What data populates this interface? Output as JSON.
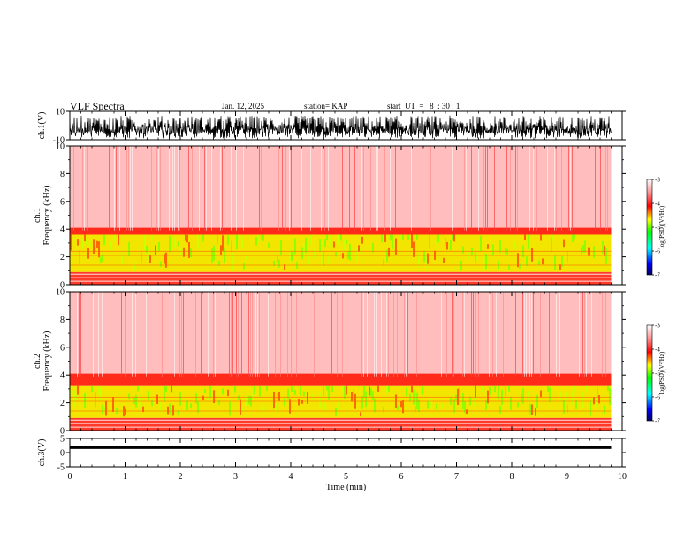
{
  "header": {
    "title": "VLF Spectra",
    "date": "Jan. 12, 2025",
    "station": "station= KAP",
    "start_ut": "start  UT  =   8  : 30 : 1"
  },
  "colors": {
    "low": "#1414a0",
    "mid_low": "#00c8ff",
    "mid": "#00ff00",
    "mid_high": "#ffff00",
    "high": "#ff0000",
    "max": "#ffffff"
  },
  "chart_data": [
    {
      "type": "line",
      "name": "ch1-waveform",
      "ylabel": "ch.1(V)",
      "ylim": [
        -10,
        10
      ],
      "y_ticks": [
        "10",
        "-10"
      ],
      "x_range": [
        0,
        9.8
      ]
    },
    {
      "type": "heatmap",
      "name": "ch1-spectrogram",
      "ylabel": "ch.1\nFrequency (kHz)",
      "ylim": [
        0,
        10
      ],
      "y_ticks": [
        "0",
        "2",
        "4",
        "6",
        "8",
        "10"
      ],
      "colorbar": {
        "label": "log(PSD)(V²/Hz)",
        "range": [
          -7,
          -3
        ],
        "ticks": [
          "-3",
          "-4",
          "-5",
          "-6",
          "-7"
        ]
      }
    },
    {
      "type": "heatmap",
      "name": "ch2-spectrogram",
      "ylabel": "ch.2\nFrequency (kHz)",
      "ylim": [
        0,
        10
      ],
      "y_ticks": [
        "0",
        "2",
        "4",
        "6",
        "8",
        "10"
      ],
      "colorbar": {
        "label": "log(PSD)(V²/Hz)",
        "range": [
          -7,
          -3
        ],
        "ticks": [
          "-3",
          "-4",
          "-5",
          "-6",
          "-7"
        ]
      }
    },
    {
      "type": "line",
      "name": "ch3-waveform",
      "ylabel": "ch.3(V)",
      "ylim": [
        -5,
        5
      ],
      "y_ticks": [
        "5",
        "0",
        "-5"
      ]
    }
  ],
  "x_axis": {
    "label": "Time  (min)",
    "range": [
      0,
      10
    ],
    "ticks": [
      "0",
      "1",
      "2",
      "3",
      "4",
      "5",
      "6",
      "7",
      "8",
      "9",
      "10"
    ]
  }
}
